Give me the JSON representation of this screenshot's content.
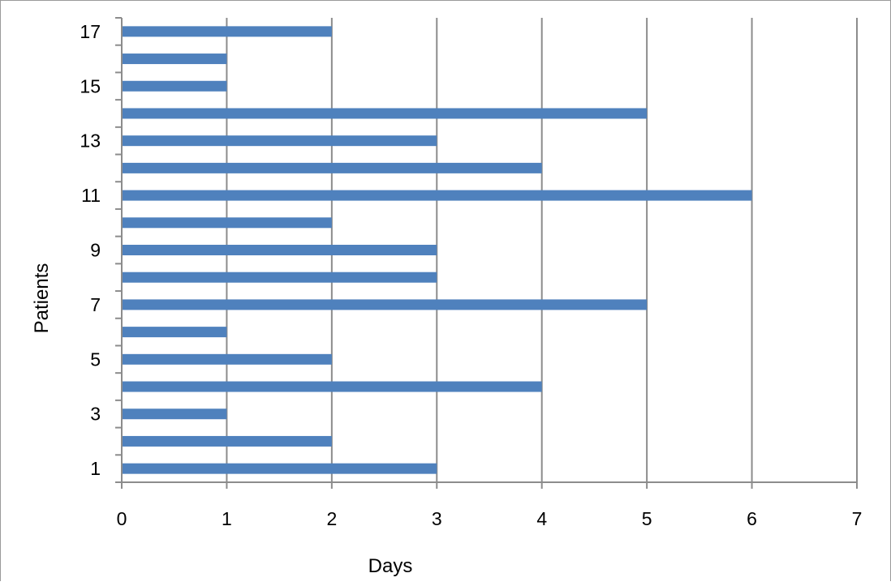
{
  "chart_data": {
    "type": "bar",
    "orientation": "horizontal",
    "title": "",
    "xlabel": "Days",
    "ylabel": "Patients",
    "xlim": [
      0,
      7
    ],
    "x_ticks": [
      0,
      1,
      2,
      3,
      4,
      5,
      6,
      7
    ],
    "categories": [
      1,
      2,
      3,
      4,
      5,
      6,
      7,
      8,
      9,
      10,
      11,
      12,
      13,
      14,
      15,
      16,
      17
    ],
    "y_tick_labels": [
      1,
      3,
      5,
      7,
      9,
      11,
      13,
      15,
      17
    ],
    "values": [
      3,
      2,
      1,
      4,
      2,
      1,
      5,
      3,
      3,
      2,
      6,
      4,
      3,
      5,
      1,
      1,
      2
    ],
    "grid": "vertical major gridlines",
    "legend": "none",
    "bar_color": "#4f81bd",
    "gridline_color": "#8c8c8c"
  }
}
